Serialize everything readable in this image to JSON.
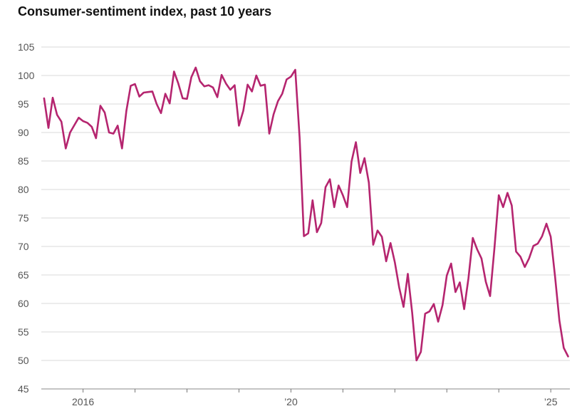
{
  "chart_data": {
    "type": "line",
    "title": "Consumer-sentiment index, past 10 years",
    "xlabel": "",
    "ylabel": "",
    "ylim": [
      45,
      105
    ],
    "xlim": [
      2014.95,
      2025.45
    ],
    "y_ticks": [
      45,
      50,
      55,
      60,
      65,
      70,
      75,
      80,
      85,
      90,
      95,
      100,
      105
    ],
    "x_tick_labels": [
      {
        "x": 2016,
        "label": "2016"
      },
      {
        "x": 2020,
        "label": "’20"
      },
      {
        "x": 2025,
        "label": "’25"
      }
    ],
    "x_minor_ticks": [
      2017,
      2018,
      2019,
      2021,
      2022,
      2023,
      2024
    ],
    "grid": true,
    "colors": {
      "line": "#b5256f",
      "grid": "#d9d9d9",
      "axis": "#888888",
      "text": "#555555"
    },
    "series": [
      {
        "name": "Consumer sentiment",
        "x_start": 2015.25,
        "step": 0.08333,
        "values": [
          96.0,
          90.8,
          96.1,
          93.1,
          91.9,
          87.2,
          90.0,
          91.3,
          92.6,
          92.0,
          91.7,
          91.0,
          89.0,
          94.7,
          93.5,
          90.0,
          89.8,
          91.2,
          87.2,
          93.8,
          98.2,
          98.5,
          96.3,
          97.0,
          97.1,
          97.2,
          95.0,
          93.4,
          96.8,
          95.1,
          100.7,
          98.6,
          96.0,
          95.9,
          99.7,
          101.4,
          99.0,
          98.1,
          98.3,
          97.9,
          96.2,
          100.1,
          98.6,
          97.5,
          98.3,
          91.2,
          93.8,
          98.4,
          97.2,
          100.0,
          98.2,
          98.4,
          89.8,
          93.2,
          95.5,
          96.8,
          99.3,
          99.8,
          101.0,
          89.1,
          71.8,
          72.3,
          78.1,
          72.5,
          74.1,
          80.4,
          81.8,
          76.9,
          80.7,
          79.0,
          76.9,
          84.9,
          88.3,
          82.9,
          85.5,
          81.2,
          70.3,
          72.8,
          71.7,
          67.4,
          70.6,
          67.2,
          62.8,
          59.4,
          65.2,
          58.4,
          50.0,
          51.5,
          58.2,
          58.6,
          59.9,
          56.8,
          59.7,
          64.9,
          67.0,
          62.0,
          63.7,
          59.0,
          64.4,
          71.5,
          69.5,
          67.9,
          63.8,
          61.3,
          69.7,
          79.0,
          76.9,
          79.4,
          77.2,
          69.1,
          68.2,
          66.4,
          67.9,
          70.1,
          70.5,
          71.8,
          74.0,
          71.7,
          64.7,
          57.0,
          52.2,
          50.7
        ]
      }
    ]
  }
}
